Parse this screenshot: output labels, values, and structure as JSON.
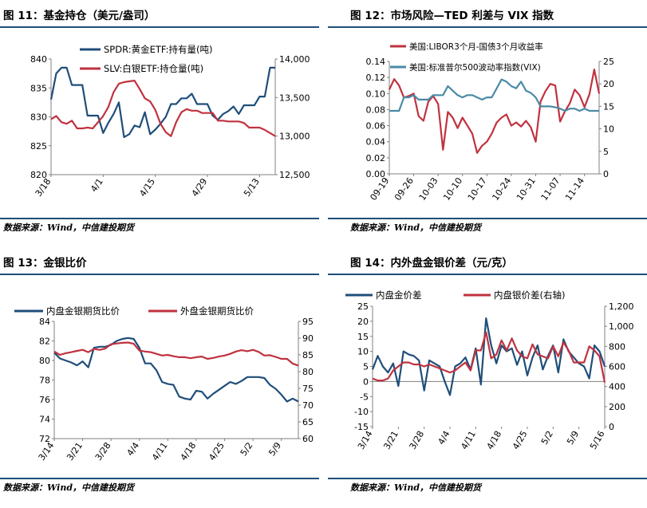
{
  "source_text": "数据来源：Wind，中信建投期货",
  "colors": {
    "navy": "#1f4e79",
    "red": "#c0323f",
    "teal": "#4a8aa6",
    "grid": "#d9d9d9"
  },
  "chart_data": [
    {
      "id": "c11",
      "title": "图 11：基金持仓（美元/盎司）",
      "type": "line",
      "x": [
        "3/18",
        "3/19",
        "3/20",
        "3/21",
        "3/22",
        "3/25",
        "3/26",
        "3/27",
        "3/28",
        "3/29",
        "4/1",
        "4/2",
        "4/3",
        "4/4",
        "4/5",
        "4/8",
        "4/9",
        "4/10",
        "4/11",
        "4/12",
        "4/15",
        "4/16",
        "4/17",
        "4/18",
        "4/19",
        "4/22",
        "4/23",
        "4/24",
        "4/25",
        "4/26",
        "4/29",
        "4/30",
        "5/1",
        "5/2",
        "5/3",
        "5/6",
        "5/7",
        "5/8",
        "5/9",
        "5/10",
        "5/13",
        "5/14",
        "5/15",
        "5/16"
      ],
      "x_tick_labels": [
        "3/18",
        "4/1",
        "4/15",
        "4/29",
        "5/13"
      ],
      "series": [
        {
          "name": "SPDR:黄金ETF:持有量(吨)",
          "axis": "left",
          "color": "#1f4e79",
          "values": [
            833,
            837.5,
            838.5,
            838.5,
            835.5,
            835.5,
            835.5,
            830.2,
            830.2,
            830.2,
            827.2,
            829,
            830.5,
            832.5,
            826.5,
            827,
            828.5,
            828.2,
            830.8,
            827,
            827.8,
            828.8,
            830,
            832.2,
            832.2,
            833.2,
            833.2,
            834,
            832.2,
            832.2,
            832.2,
            830.2,
            829.5,
            830.5,
            831,
            831.8,
            830.5,
            832,
            832,
            832,
            833.5,
            833.5,
            838.5,
            838.5
          ]
        },
        {
          "name": "SLV:白银ETF:持仓量(吨)",
          "axis": "right",
          "color": "#c0323f",
          "values": [
            13220,
            13260,
            13180,
            13160,
            13200,
            13100,
            13100,
            13110,
            13100,
            13180,
            13260,
            13380,
            13570,
            13680,
            13700,
            13710,
            13720,
            13610,
            13490,
            13450,
            13340,
            13160,
            13050,
            13000,
            13180,
            13310,
            13350,
            13330,
            13330,
            13300,
            13300,
            13300,
            13200,
            13200,
            13190,
            13190,
            13190,
            13170,
            13110,
            13110,
            13110,
            13080,
            13040,
            13000
          ]
        }
      ],
      "ylim_left": [
        820,
        840
      ],
      "yticks_left": [
        "820",
        "825",
        "830",
        "835",
        "840"
      ],
      "ylim_right": [
        12500,
        14000
      ],
      "yticks_right": [
        "12,500",
        "13,000",
        "13,500",
        "14,000"
      ],
      "legend": "top-left",
      "grid": false
    },
    {
      "id": "c12",
      "title": "图 12：市场风险—TED 利差与 VIX 指数",
      "type": "line",
      "x": [
        "09-19",
        "09-20",
        "09-21",
        "09-22",
        "09-25",
        "09-26",
        "09-27",
        "09-28",
        "09-29",
        "10-02",
        "10-03",
        "10-04",
        "10-05",
        "10-06",
        "10-09",
        "10-10",
        "10-11",
        "10-12",
        "10-13",
        "10-16",
        "10-17",
        "10-18",
        "10-19",
        "10-20",
        "10-23",
        "10-24",
        "10-25",
        "10-26",
        "10-27",
        "10-30",
        "10-31",
        "11-01",
        "11-02",
        "11-03",
        "11-06",
        "11-07",
        "11-08",
        "11-09",
        "11-10",
        "11-13",
        "11-14",
        "11-15",
        "11-16",
        "11-17"
      ],
      "x_tick_labels": [
        "09-19",
        "09-26",
        "10-03",
        "10-10",
        "10-17",
        "10-24",
        "10-31",
        "11-07",
        "11-14"
      ],
      "series": [
        {
          "name": "美国:LIBOR3个月-国债3个月收益率",
          "axis": "left",
          "color": "#c0323f",
          "values": [
            0.105,
            0.118,
            0.11,
            0.095,
            0.097,
            0.1,
            0.072,
            0.066,
            0.09,
            0.097,
            0.087,
            0.03,
            0.077,
            0.07,
            0.057,
            0.07,
            0.06,
            0.05,
            0.026,
            0.035,
            0.04,
            0.05,
            0.064,
            0.07,
            0.074,
            0.06,
            0.064,
            0.059,
            0.066,
            0.058,
            0.04,
            0.09,
            0.103,
            0.112,
            0.11,
            0.065,
            0.078,
            0.088,
            0.105,
            0.098,
            0.083,
            0.099,
            0.13,
            0.1
          ]
        },
        {
          "name": "美国:标准普尔500波动率指数(VIX)",
          "axis": "right",
          "color": "#4a8aa6",
          "values": [
            14,
            14,
            14,
            17,
            17,
            17.5,
            16.5,
            16.5,
            16.5,
            17.5,
            17.5,
            17.5,
            19.5,
            18.5,
            17.5,
            17,
            17.5,
            17.5,
            17,
            16.5,
            17,
            17,
            19,
            21,
            20.5,
            19.5,
            19,
            20.5,
            18.5,
            18,
            17,
            15,
            15,
            15,
            14.8,
            14.5,
            14,
            14.5,
            14.5,
            14,
            14.5,
            14,
            14,
            14
          ]
        }
      ],
      "ylim_left": [
        0,
        0.14
      ],
      "yticks_left": [
        "0.00",
        "0.02",
        "0.04",
        "0.06",
        "0.08",
        "0.10",
        "0.12",
        "0.14"
      ],
      "ylim_right": [
        0,
        25
      ],
      "yticks_right": [
        "0",
        "5",
        "10",
        "15",
        "20",
        "25"
      ],
      "legend": "top-left",
      "grid": false
    },
    {
      "id": "c13",
      "title": "图 13：金银比价",
      "type": "line",
      "x": [
        "3/14",
        "3/15",
        "3/18",
        "3/19",
        "3/20",
        "3/21",
        "3/22",
        "3/25",
        "3/26",
        "3/27",
        "3/28",
        "3/29",
        "4/1",
        "4/2",
        "4/3",
        "4/4",
        "4/5",
        "4/8",
        "4/9",
        "4/10",
        "4/11",
        "4/12",
        "4/15",
        "4/16",
        "4/17",
        "4/18",
        "4/19",
        "4/22",
        "4/23",
        "4/24",
        "4/25",
        "4/26",
        "4/29",
        "4/30",
        "5/1",
        "5/2",
        "5/3",
        "5/6",
        "5/7",
        "5/8",
        "5/9",
        "5/10",
        "5/13",
        "5/14"
      ],
      "x_tick_labels": [
        "3/14",
        "3/21",
        "3/28",
        "4/4",
        "4/11",
        "4/18",
        "4/25",
        "5/2",
        "5/9"
      ],
      "series": [
        {
          "name": "内盘金银期货比价",
          "axis": "left",
          "color": "#1f4e79",
          "values": [
            80.8,
            80.2,
            80,
            79.8,
            79.5,
            79.9,
            79.3,
            81.3,
            81.4,
            81.4,
            81.6,
            82,
            82.2,
            82.3,
            82.2,
            81.3,
            79.7,
            79.7,
            79,
            77.8,
            77.6,
            77.5,
            76.3,
            76.1,
            76,
            76.9,
            76.8,
            76.1,
            76.6,
            77,
            77.4,
            77.8,
            77.6,
            77.9,
            78.3,
            78.3,
            78.3,
            78.2,
            77.5,
            77.1,
            76.5,
            75.8,
            76.1,
            75.8
          ]
        },
        {
          "name": "外盘金银期货比价",
          "axis": "right",
          "color": "#c0323f",
          "values": [
            86,
            85,
            85.5,
            85.8,
            86.2,
            86.5,
            85.8,
            86.8,
            86.5,
            86.9,
            88.2,
            88.4,
            88.6,
            88.7,
            88.3,
            86.3,
            86,
            85.8,
            85.3,
            84.8,
            85,
            84.6,
            84.3,
            84.3,
            84,
            84.3,
            84.5,
            83.8,
            84.1,
            84.5,
            84.8,
            85.3,
            86,
            86.4,
            86.1,
            86.5,
            85.9,
            84.8,
            84.9,
            84.4,
            83.8,
            83.8,
            82.4,
            81.8
          ]
        }
      ],
      "ylim_left": [
        72,
        84
      ],
      "yticks_left": [
        "72",
        "74",
        "76",
        "78",
        "80",
        "82",
        "84"
      ],
      "ylim_right": [
        60,
        95
      ],
      "yticks_right": [
        "60",
        "65",
        "70",
        "75",
        "80",
        "85",
        "90",
        "95"
      ],
      "legend": "top",
      "grid": false
    },
    {
      "id": "c14",
      "title": "图 14：内外盘金银价差（元/克）",
      "type": "line",
      "x": [
        "3/14",
        "3/15",
        "3/18",
        "3/19",
        "3/20",
        "3/21",
        "3/22",
        "3/25",
        "3/26",
        "3/27",
        "3/28",
        "3/29",
        "4/1",
        "4/2",
        "4/3",
        "4/4",
        "4/5",
        "4/8",
        "4/9",
        "4/10",
        "4/11",
        "4/12",
        "4/15",
        "4/16",
        "4/17",
        "4/18",
        "4/19",
        "4/22",
        "4/23",
        "4/24",
        "4/25",
        "4/26",
        "4/29",
        "4/30",
        "5/1",
        "5/2",
        "5/3",
        "5/6",
        "5/7",
        "5/8",
        "5/9",
        "5/10",
        "5/13",
        "5/14",
        "5/15",
        "5/16"
      ],
      "x_tick_labels": [
        "3/14",
        "3/21",
        "3/28",
        "4/4",
        "4/11",
        "4/18",
        "4/25",
        "5/2",
        "5/9",
        "5/16"
      ],
      "series": [
        {
          "name": "内盘金价差",
          "axis": "left",
          "color": "#1f4e79",
          "values": [
            4,
            8.5,
            5,
            3,
            6,
            -1.5,
            10,
            9,
            8.5,
            7,
            -3,
            7,
            6,
            5,
            0,
            -4.5,
            5,
            6,
            8,
            4,
            11,
            -1,
            21,
            12,
            6,
            12,
            10,
            11,
            5.5,
            10,
            2,
            8,
            12,
            4,
            8.5,
            12,
            3,
            14,
            10,
            8,
            6,
            5,
            1,
            12,
            10,
            5
          ]
        },
        {
          "name": "内盘银价差(右轴)",
          "axis": "right",
          "color": "#c0323f",
          "values": [
            480,
            460,
            460,
            480,
            560,
            600,
            640,
            640,
            620,
            620,
            600,
            620,
            600,
            580,
            560,
            540,
            560,
            600,
            640,
            560,
            760,
            760,
            940,
            680,
            720,
            860,
            760,
            880,
            760,
            700,
            680,
            820,
            720,
            700,
            680,
            800,
            700,
            840,
            760,
            640,
            640,
            640,
            800,
            760,
            700,
            440
          ]
        }
      ],
      "ylim_left": [
        -15,
        25
      ],
      "yticks_left": [
        "-15",
        "-10",
        "-5",
        "0",
        "5",
        "10",
        "15",
        "20",
        "25"
      ],
      "ylim_right": [
        0,
        1200
      ],
      "yticks_right": [
        "0",
        "200",
        "400",
        "600",
        "800",
        "1,000",
        "1,200"
      ],
      "legend": "top",
      "grid": false
    }
  ]
}
